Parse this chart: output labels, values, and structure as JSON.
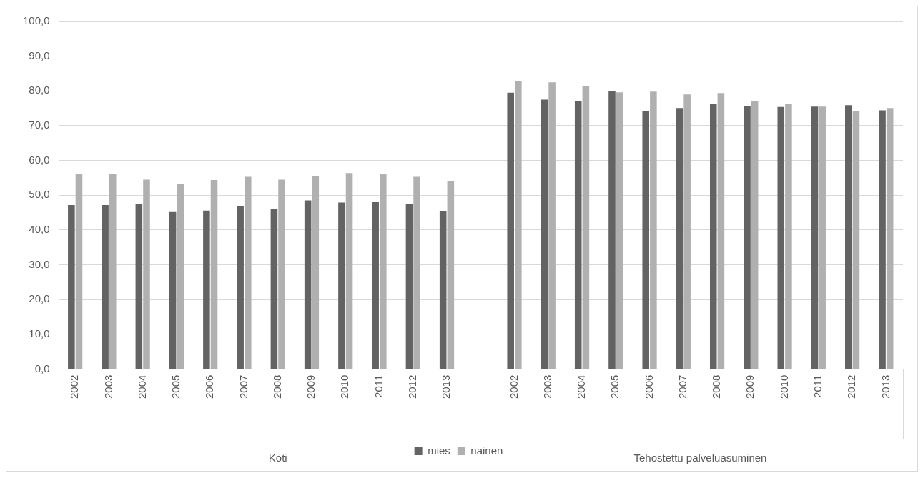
{
  "chart_data": {
    "type": "bar",
    "categories": [
      "2002",
      "2003",
      "2004",
      "2005",
      "2006",
      "2007",
      "2008",
      "2009",
      "2010",
      "2011",
      "2012",
      "2013",
      null,
      "2002",
      "2003",
      "2004",
      "2005",
      "2006",
      "2007",
      "2008",
      "2009",
      "2010",
      "2011",
      "2012",
      "2013"
    ],
    "series": [
      {
        "name": "mies",
        "color": "#636363",
        "values": [
          47.2,
          47.2,
          47.4,
          45.2,
          45.6,
          46.8,
          46.0,
          48.5,
          47.9,
          48.0,
          47.4,
          45.5,
          null,
          79.5,
          77.5,
          77.0,
          80.0,
          74.1,
          75.1,
          76.2,
          75.7,
          75.4,
          75.5,
          75.9,
          74.4
        ]
      },
      {
        "name": "nainen",
        "color": "#b0b0b0",
        "values": [
          56.2,
          56.2,
          54.5,
          53.3,
          54.4,
          55.3,
          54.5,
          55.4,
          56.4,
          56.2,
          55.3,
          54.2,
          null,
          82.9,
          82.5,
          81.5,
          79.6,
          79.8,
          79.0,
          79.4,
          77.0,
          76.2,
          75.5,
          74.2,
          75.1
        ]
      }
    ],
    "annotations": [
      "Koti",
      "Tehostettu palveluasuminen"
    ],
    "ylim": [
      0,
      100
    ],
    "yticks": [
      {
        "value": 0,
        "label": "0,0"
      },
      {
        "value": 10,
        "label": "10,0"
      },
      {
        "value": 20,
        "label": "20,0"
      },
      {
        "value": 30,
        "label": "30,0"
      },
      {
        "value": 40,
        "label": "40,0"
      },
      {
        "value": 50,
        "label": "50,0"
      },
      {
        "value": 60,
        "label": "60,0"
      },
      {
        "value": 70,
        "label": "70,0"
      },
      {
        "value": 80,
        "label": "80,0"
      },
      {
        "value": 90,
        "label": "90,0"
      },
      {
        "value": 100,
        "label": "100,0"
      }
    ],
    "grid": "y",
    "legend": "bottom"
  }
}
